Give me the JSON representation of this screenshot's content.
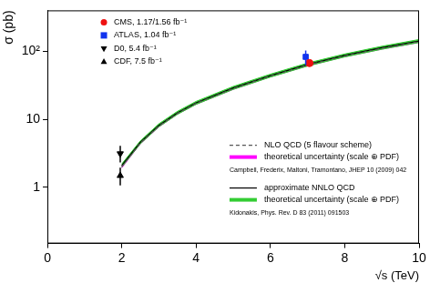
{
  "chart_data": {
    "type": "line",
    "x_label": "√s (TeV)",
    "y_label": "σ (pb)",
    "log": "y",
    "grid": false,
    "legend": "upper left",
    "xlim": [
      0,
      10
    ],
    "xticks": [
      0,
      2,
      4,
      6,
      8,
      10
    ],
    "ylim": [
      0.15,
      400
    ],
    "yticks": [
      1,
      10,
      {
        "value": 100,
        "label": "10²"
      }
    ],
    "x": [
      2,
      2.5,
      3,
      3.5,
      4,
      5,
      6,
      7,
      8,
      9,
      10
    ],
    "series": [
      {
        "name": "NLO QCD (5 flavour scheme)",
        "type": "line",
        "line_style": "dashed",
        "color": "#555555",
        "values": [
          2.0,
          4.5,
          8.0,
          12.3,
          17.2,
          28.5,
          43.5,
          63,
          86,
          111,
          139
        ],
        "band": {
          "name": "theoretical uncertainty (scale ⊕ PDF)",
          "color": "#ff00ff",
          "lower": [
            1.94,
            4.37,
            7.76,
            11.93,
            16.68,
            27.6,
            42.2,
            61.1,
            83.4,
            107.7,
            134.8
          ],
          "upper": [
            2.06,
            4.64,
            8.24,
            12.67,
            17.72,
            29.4,
            44.8,
            64.9,
            88.6,
            114.3,
            143.2
          ]
        },
        "reference": "Campbell, Frederix, Maltoni, Tramontano, JHEP 10 (2009) 042"
      },
      {
        "name": "approximate NNLO QCD",
        "type": "line",
        "line_style": "solid",
        "color": "#000000",
        "values": [
          2.1,
          4.6,
          8.2,
          12.5,
          17.5,
          29,
          44,
          64,
          87,
          113,
          142
        ],
        "band": {
          "name": "theoretical uncertainty (scale ⊕ PDF)",
          "color": "#33cc33",
          "lower": [
            1.99,
            4.37,
            7.79,
            11.88,
            16.63,
            27.6,
            41.8,
            60.8,
            82.7,
            107.4,
            134.9
          ],
          "upper": [
            2.21,
            4.83,
            8.61,
            13.13,
            18.38,
            30.5,
            46.2,
            67.2,
            91.4,
            118.7,
            149.1
          ]
        },
        "reference": "Kidonakis, Phys. Rev. D 83 (2011) 091503"
      },
      {
        "name": "CMS, 1.17/1.56 fb⁻¹",
        "type": "scatter",
        "marker": "circle",
        "color": "#ee1111",
        "x": [
          7.05
        ],
        "values": [
          67.2
        ],
        "error_low": [
          6.1
        ],
        "error_high": [
          6.1
        ]
      },
      {
        "name": "ATLAS, 1.04 fb⁻¹",
        "type": "scatter",
        "marker": "square",
        "color": "#1133ee",
        "x": [
          6.95
        ],
        "values": [
          83
        ],
        "error_low": [
          20
        ],
        "error_high": [
          20
        ]
      },
      {
        "name": "D0, 5.4 fb⁻¹",
        "type": "scatter",
        "marker": "triangle_down",
        "color": "#000000",
        "x": [
          1.96
        ],
        "values": [
          3.14
        ],
        "error_low": [
          0.8
        ],
        "error_high": [
          0.94
        ]
      },
      {
        "name": "CDF, 7.5 fb⁻¹",
        "type": "scatter",
        "marker": "triangle_up",
        "color": "#000000",
        "x": [
          1.96
        ],
        "values": [
          1.49
        ],
        "error_low": [
          0.42
        ],
        "error_high": [
          0.47
        ]
      }
    ]
  }
}
